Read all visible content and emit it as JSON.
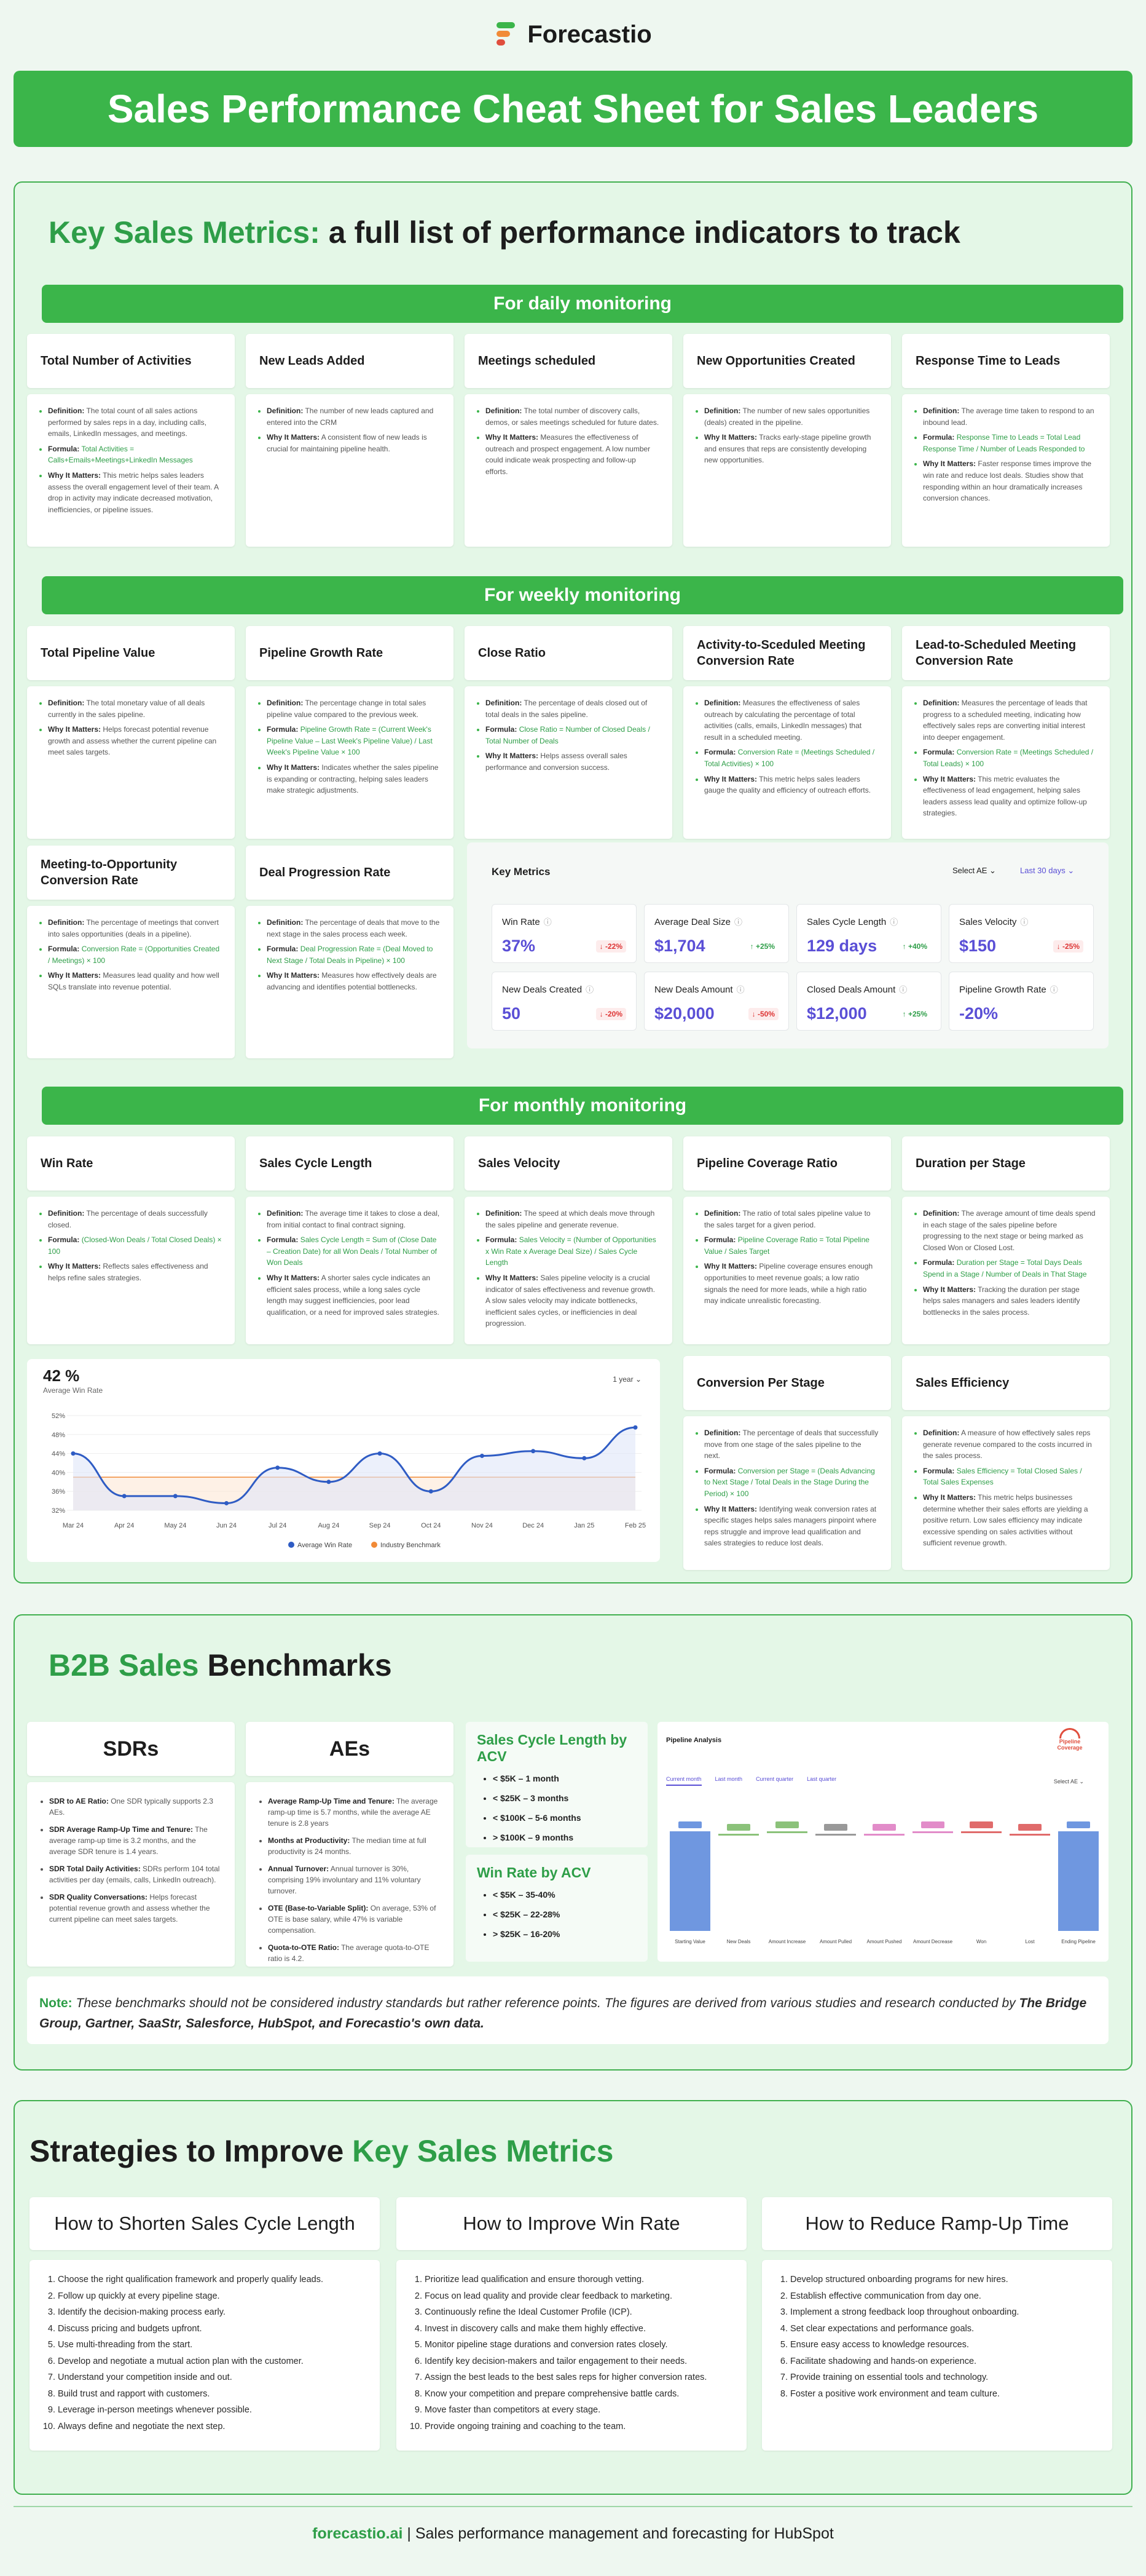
{
  "brand": {
    "name": "Forecastio",
    "colors": {
      "green": "#3bb54a",
      "dark_green": "#2e9e48",
      "orange": "#f18a37",
      "red": "#e04e3d",
      "purple": "#5a4fd6"
    }
  },
  "banner": {
    "title": "Sales Performance Cheat Sheet for Sales Leaders"
  },
  "key_metrics": {
    "title_accent": "Key Sales Metrics:",
    "title_rest": " a full list of performance indicators to track",
    "daily": {
      "label": "For daily monitoring",
      "cards": [
        {
          "title": "Total Number of Activities",
          "definition": "The total count of all sales actions performed by sales reps in a day, including calls, emails, LinkedIn messages, and meetings.",
          "formula": "Total Activities = Calls+Emails+Meetings+LinkedIn Messages",
          "why": "This metric helps sales leaders assess the overall engagement level of their team. A drop in activity may indicate decreased motivation, inefficiencies, or pipeline issues."
        },
        {
          "title": "New Leads Added",
          "definition": "The number of new leads captured and entered into the CRM",
          "formula": "",
          "why": "A consistent flow of new leads is crucial for maintaining pipeline health."
        },
        {
          "title": "Meetings scheduled",
          "definition": "The total number of discovery calls, demos, or sales meetings scheduled for future dates.",
          "formula": "",
          "why": "Measures the effectiveness of outreach and prospect engagement. A low number could indicate weak prospecting and follow-up efforts."
        },
        {
          "title": "New Opportunities Created",
          "definition": "The number of new sales opportunities (deals) created in the pipeline.",
          "formula": "",
          "why": "Tracks early-stage pipeline growth and ensures that reps are consistently developing new opportunities."
        },
        {
          "title": "Response Time to Leads",
          "definition": "The average time taken to respond to an inbound lead.",
          "formula": "Response Time to Leads = Total Lead Response Time / Number of Leads Responded to",
          "why": "Faster response times improve the win rate and reduce lost deals. Studies show that responding within an hour dramatically increases conversion chances."
        }
      ]
    },
    "weekly": {
      "label": "For weekly monitoring",
      "cards": [
        {
          "title": "Total Pipeline Value",
          "definition": "The total monetary value of all deals currently in the sales pipeline.",
          "formula": "",
          "why": "Helps forecast potential revenue growth and assess whether the current pipeline can meet sales targets."
        },
        {
          "title": "Pipeline Growth Rate",
          "definition": "The percentage change in total sales pipeline value compared to the previous week.",
          "formula": "Pipeline Growth Rate = (Current Week's Pipeline Value – Last Week's Pipeline Value) / Last Week's Pipeline Value × 100",
          "why": "Indicates whether the sales pipeline is expanding or contracting, helping sales leaders make strategic adjustments."
        },
        {
          "title": "Close Ratio",
          "definition": "The percentage of deals closed out of total deals in the sales pipeline.",
          "formula": "Close Ratio = Number of Closed Deals / Total Number of Deals",
          "why": "Helps assess overall sales performance and conversion success."
        },
        {
          "title": "Activity-to-Sceduled Meeting Conversion Rate",
          "definition": "Measures the effectiveness of sales outreach by calculating the percentage of total activities (calls, emails, LinkedIn messages) that result in a scheduled meeting.",
          "formula": "Conversion Rate = (Meetings Scheduled / Total Activities) × 100",
          "why": "This metric helps sales leaders gauge the quality and efficiency of outreach efforts."
        },
        {
          "title": "Lead-to-Scheduled Meeting Conversion Rate",
          "definition": "Measures the percentage of leads that progress to a scheduled meeting, indicating how effectively sales reps are converting initial interest into deeper engagement.",
          "formula": "Conversion Rate = (Meetings Scheduled / Total Leads) × 100",
          "why": "This metric evaluates the effectiveness of lead engagement, helping sales leaders assess lead quality and optimize follow-up strategies."
        },
        {
          "title": "Meeting-to-Opportunity Conversion Rate",
          "definition": "The percentage of meetings that convert into sales opportunities (deals in a pipeline).",
          "formula": "Conversion Rate = (Opportunities Created / Meetings) × 100",
          "why": "Measures lead quality and how well SQLs translate into revenue potential."
        },
        {
          "title": "Deal Progression Rate",
          "definition": "The percentage of deals that move to the next stage in the sales process each week.",
          "formula": "Deal Progression Rate = (Deal Moved to Next Stage / Total Deals in Pipeline) × 100",
          "why": "Measures how effectively deals are advancing and identifies potential bottlenecks."
        }
      ]
    },
    "widget": {
      "title": "Key Metrics",
      "select_ae": "Select AE",
      "period": "Last 30 days",
      "tiles": [
        {
          "label": "Win Rate",
          "value": "37%",
          "change": "-22%",
          "dir": "down"
        },
        {
          "label": "Average Deal Size",
          "value": "$1,704",
          "change": "+25%",
          "dir": "up"
        },
        {
          "label": "Sales Cycle Length",
          "value": "129 days",
          "change": "+40%",
          "dir": "up"
        },
        {
          "label": "Sales Velocity",
          "value": "$150",
          "change": "-25%",
          "dir": "down"
        },
        {
          "label": "New Deals Created",
          "value": "50",
          "change": "-20%",
          "dir": "down"
        },
        {
          "label": "New Deals Amount",
          "value": "$20,000",
          "change": "-50%",
          "dir": "down"
        },
        {
          "label": "Closed Deals Amount",
          "value": "$12,000",
          "change": "+25%",
          "dir": "up"
        },
        {
          "label": "Pipeline Growth Rate",
          "value": "-20%",
          "change": "",
          "dir": ""
        }
      ]
    },
    "monthly": {
      "label": "For monthly monitoring",
      "cards": [
        {
          "title": "Win Rate",
          "definition": "The percentage of deals successfully closed.",
          "formula": "(Closed-Won Deals / Total Closed Deals) × 100",
          "why": "Reflects sales effectiveness and helps refine sales strategies."
        },
        {
          "title": "Sales Cycle Length",
          "definition": "The average time it takes to close a deal, from initial contact to final contract signing.",
          "formula": "Sales Cycle Length = Sum of (Close Date – Creation Date) for all Won Deals / Total Number of Won Deals",
          "why": "A shorter sales cycle indicates an efficient sales process, while a long sales cycle length may suggest inefficiencies, poor lead qualification, or a need for improved sales strategies."
        },
        {
          "title": "Sales Velocity",
          "definition": "The speed at which deals move through the sales pipeline and generate revenue.",
          "formula": "Sales Velocity = (Number of Opportunities x Win Rate x Average Deal Size) / Sales Cycle Length",
          "why": "Sales pipeline velocity is a crucial indicator of sales effectiveness and revenue growth. A slow sales velocity may indicate bottlenecks, inefficient sales cycles, or inefficiencies in deal progression."
        },
        {
          "title": "Pipeline Coverage Ratio",
          "definition": "The ratio of total sales pipeline value to the sales target for a given period.",
          "formula": "Pipeline Coverage Ratio = Total Pipeline Value / Sales Target",
          "why": "Pipeline coverage ensures enough opportunities to meet revenue goals; a low ratio signals the need for more leads, while a high ratio may indicate unrealistic forecasting."
        },
        {
          "title": "Duration per Stage",
          "definition": "The average amount of time deals spend in each stage of the sales pipeline before progressing to the next stage or being marked as Closed Won or Closed Lost.",
          "formula": "Duration per Stage = Total Days Deals Spend in a Stage / Number of Deals in That Stage",
          "why": "Tracking the duration per stage helps sales managers and sales leaders identify bottlenecks in the sales process."
        },
        {
          "title": "Conversion Per Stage",
          "definition": "The percentage of deals that successfully move from one stage of the sales pipeline to the next.",
          "formula": "Conversion per Stage = (Deals Advancing to Next Stage / Total Deals in the Stage During the Period) × 100",
          "why": "Identifying weak conversion rates at specific stages helps sales managers pinpoint where reps struggle and improve lead qualification and sales strategies to reduce lost deals."
        },
        {
          "title": "Sales Efficiency",
          "definition": "A measure of how effectively sales reps generate revenue compared to the costs incurred in the sales process.",
          "formula": "Sales Efficiency = Total Closed Sales / Total Sales Expenses",
          "why": "This metric helps businesses determine whether their sales efforts are yielding a positive return. Low sales efficiency may indicate excessive spending on sales activities without sufficient revenue growth."
        }
      ]
    },
    "labels": {
      "definition": "Definition:",
      "formula": "Formula:",
      "why": "Why It Matters:"
    }
  },
  "chart_data": {
    "type": "line",
    "headline_value": "42 %",
    "headline_label": "Average Win Rate",
    "period_select": "1 year",
    "categories": [
      "Mar 24",
      "Apr 24",
      "May 24",
      "Jun 24",
      "Jul 24",
      "Aug 24",
      "Sep 24",
      "Oct 24",
      "Nov 24",
      "Dec 24",
      "Jan 25",
      "Feb 25"
    ],
    "y_ticks": [
      "52%",
      "48%",
      "44%",
      "40%",
      "36%",
      "32%"
    ],
    "ylim": [
      32,
      52
    ],
    "series": [
      {
        "name": "Average Win Rate",
        "color": "#2f5cc4",
        "values": [
          44,
          35,
          35,
          33.5,
          41,
          38,
          44,
          36,
          43.5,
          44.5,
          43,
          49.5
        ]
      },
      {
        "name": "Industry Benchmark",
        "color": "#f18a37",
        "values": [
          39,
          39,
          39,
          39,
          39,
          39,
          39,
          39,
          39,
          39,
          39,
          39
        ]
      }
    ],
    "legend": "bottom"
  },
  "benchmarks": {
    "title_accent": "B2B Sales",
    "title_rest": " Benchmarks",
    "sdrs": {
      "title": "SDRs",
      "items": [
        {
          "k": "SDR to AE Ratio:",
          "v": " One SDR typically supports 2.3 AEs."
        },
        {
          "k": "SDR Average Ramp-Up Time and Tenure:",
          "v": " The average ramp-up time is 3.2 months, and the average SDR tenure is 1.4 years."
        },
        {
          "k": "SDR Total Daily Activities:",
          "v": " SDRs perform 104 total activities per day (emails, calls, LinkedIn outreach)."
        },
        {
          "k": "SDR Quality Conversations:",
          "v": " Helps forecast potential revenue growth and assess whether the current pipeline can meet sales targets."
        }
      ]
    },
    "aes": {
      "title": "AEs",
      "items": [
        {
          "k": "Average Ramp-Up Time and Tenure:",
          "v": " The average ramp-up time is 5.7 months, while the average AE tenure is 2.8 years"
        },
        {
          "k": "Months at Productivity:",
          "v": " The median time at full productivity is 24 months."
        },
        {
          "k": "Annual Turnover:",
          "v": " Annual turnover is 30%, comprising 19% involuntary and 11% voluntary turnover."
        },
        {
          "k": "OTE (Base-to-Variable Split):",
          "v": " On average, 53% of OTE is base salary, while 47% is variable compensation."
        },
        {
          "k": "Quota-to-OTE Ratio:",
          "v": " The average quota-to-OTE ratio is 4.2."
        }
      ]
    },
    "cycle_acv": {
      "title": "Sales Cycle Length by ACV",
      "items": [
        "< $5K – 1 month",
        "< $25K – 3 months",
        "< $100K – 5-6 months",
        "> $100K – 9 months"
      ]
    },
    "win_acv": {
      "title": "Win Rate by ACV",
      "items": [
        "< $5K – 35-40%",
        "< $25K – 22-28%",
        "> $25K – 16-20%"
      ]
    },
    "pipeline_widget": {
      "title": "Pipeline Analysis",
      "badge": "Pipeline Coverage",
      "tabs": [
        "Current month",
        "Last month",
        "Current quarter",
        "Last quarter"
      ],
      "select": "Select AE",
      "bars": [
        "Starting Value",
        "New Deals",
        "Amount Increase",
        "Amount Pulled",
        "Amount Pushed",
        "Amount Decrease",
        "Won",
        "Lost",
        "Ending Pipeline"
      ]
    },
    "note_label": "Note:",
    "note_text": " These benchmarks should not be considered industry standards but rather reference points. The figures are derived from various studies and research conducted by ",
    "note_sources": "The Bridge Group, Gartner, SaaStr, Salesforce, HubSpot, and Forecastio's own data."
  },
  "strategies": {
    "title_rest": "Strategies to Improve ",
    "title_accent": "Key Sales Metrics",
    "cols": [
      {
        "title": "How to Shorten Sales Cycle Length",
        "items": [
          "Choose the right qualification framework and properly qualify leads.",
          "Follow up quickly at every pipeline stage.",
          "Identify the decision-making process early.",
          "Discuss pricing and budgets upfront.",
          "Use multi-threading from the start.",
          "Develop and negotiate a mutual action plan with the customer.",
          "Understand your competition inside and out.",
          "Build trust and rapport with customers.",
          "Leverage in-person meetings whenever possible.",
          "Always define and negotiate the next step."
        ]
      },
      {
        "title": "How to Improve Win Rate",
        "items": [
          "Prioritize lead qualification and ensure thorough vetting.",
          "Focus on lead quality and provide clear feedback to marketing.",
          "Continuously refine the Ideal Customer Profile (ICP).",
          "Invest in discovery calls and make them highly effective.",
          "Monitor pipeline stage durations and conversion rates closely.",
          "Identify key decision-makers and tailor engagement to their needs.",
          "Assign the best leads to the best sales reps for higher conversion rates.",
          "Know your competition and prepare comprehensive battle cards.",
          "Move faster than competitors at every stage.",
          "Provide ongoing training and coaching to the team."
        ]
      },
      {
        "title": "How to Reduce Ramp-Up Time",
        "items": [
          "Develop structured onboarding programs for new hires.",
          "Establish effective communication from day one.",
          "Implement a strong feedback loop throughout onboarding.",
          "Set clear expectations and performance goals.",
          "Ensure easy access to knowledge resources.",
          "Facilitate shadowing and hands-on experience.",
          "Provide training on essential tools and technology.",
          "Foster a positive work environment and team culture."
        ]
      }
    ]
  },
  "footer": {
    "domain": "forecastio.ai",
    "tagline": " | Sales performance management and forecasting for HubSpot"
  }
}
